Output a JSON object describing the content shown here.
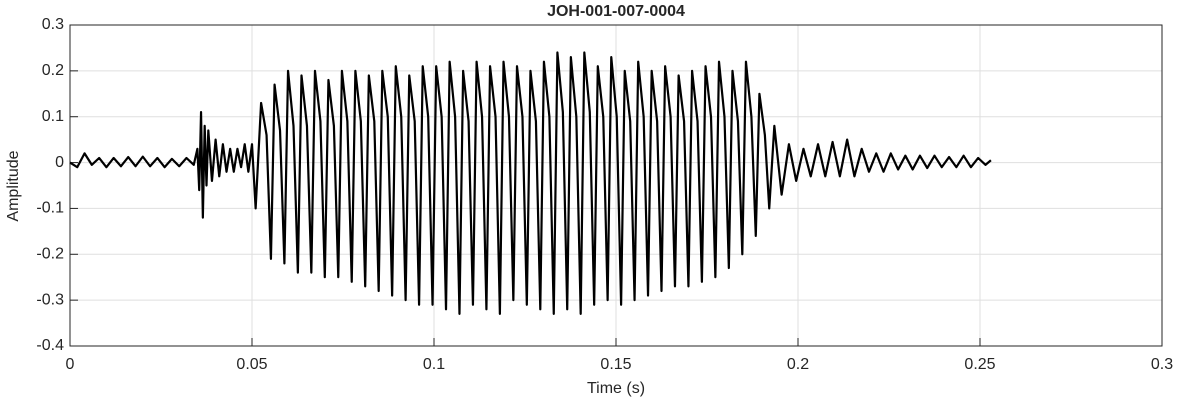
{
  "chart_data": {
    "type": "line",
    "title": "JOH-001-007-0004",
    "x_label": "Time (s)",
    "y_label": "Amplitude",
    "xlim": [
      0,
      0.3
    ],
    "xticks": [
      0,
      0.05,
      0.1,
      0.15,
      0.2,
      0.25,
      0.3
    ],
    "ylim": [
      -0.4,
      0.3
    ],
    "yticks": [
      -0.4,
      -0.3,
      -0.2,
      -0.1,
      0,
      0.1,
      0.2,
      0.3
    ],
    "grid": true,
    "series": [
      {
        "color": "#000000",
        "x": [
          0,
          0.002,
          0.004,
          0.006,
          0.008,
          0.01,
          0.012,
          0.014,
          0.016,
          0.018,
          0.02,
          0.022,
          0.024,
          0.026,
          0.028,
          0.03,
          0.032,
          0.034,
          0.035,
          0.0355,
          0.036,
          0.0365,
          0.037,
          0.0375,
          0.038,
          0.039,
          0.04,
          0.041,
          0.042,
          0.043,
          0.044,
          0.045,
          0.046,
          0.047,
          0.048,
          0.049,
          0.05,
          0.051,
          0.0525,
          0.054,
          0.0552,
          0.0562,
          0.0577,
          0.0589,
          0.0599,
          0.0614,
          0.0626,
          0.0636,
          0.0651,
          0.0663,
          0.0673,
          0.0688,
          0.07,
          0.071,
          0.0725,
          0.0737,
          0.0747,
          0.0762,
          0.0774,
          0.0784,
          0.0799,
          0.0811,
          0.0821,
          0.0836,
          0.0848,
          0.0858,
          0.0873,
          0.0885,
          0.0895,
          0.091,
          0.0922,
          0.0932,
          0.0947,
          0.0959,
          0.0969,
          0.0984,
          0.0996,
          0.1006,
          0.1021,
          0.1033,
          0.1043,
          0.1058,
          0.107,
          0.108,
          0.1095,
          0.1107,
          0.1117,
          0.1132,
          0.1144,
          0.1154,
          0.1169,
          0.1181,
          0.1191,
          0.1206,
          0.1218,
          0.1228,
          0.1243,
          0.1255,
          0.1265,
          0.128,
          0.1292,
          0.1302,
          0.1317,
          0.1329,
          0.1339,
          0.1354,
          0.1366,
          0.1376,
          0.1391,
          0.1403,
          0.1413,
          0.1428,
          0.144,
          0.145,
          0.1465,
          0.1477,
          0.1487,
          0.1502,
          0.1514,
          0.1524,
          0.1539,
          0.1551,
          0.1561,
          0.1576,
          0.1588,
          0.1598,
          0.1613,
          0.1625,
          0.1635,
          0.165,
          0.1662,
          0.1672,
          0.1687,
          0.1699,
          0.1709,
          0.1724,
          0.1736,
          0.1746,
          0.1761,
          0.1773,
          0.1783,
          0.1798,
          0.181,
          0.182,
          0.1835,
          0.1847,
          0.1857,
          0.1872,
          0.1884,
          0.1894,
          0.1909,
          0.1921,
          0.1935,
          0.1955,
          0.1975,
          0.1995,
          0.2015,
          0.2035,
          0.2055,
          0.2075,
          0.2095,
          0.2115,
          0.2135,
          0.2155,
          0.2175,
          0.2195,
          0.2215,
          0.2235,
          0.2255,
          0.2275,
          0.2295,
          0.2315,
          0.2335,
          0.2355,
          0.2375,
          0.2395,
          0.2415,
          0.2435,
          0.2455,
          0.2475,
          0.2495,
          0.2515,
          0.253
        ],
        "values": [
          0,
          -0.01,
          0.02,
          -0.005,
          0.01,
          -0.01,
          0.01,
          -0.008,
          0.012,
          -0.008,
          0.013,
          -0.008,
          0.01,
          -0.01,
          0.008,
          -0.008,
          0.01,
          -0.005,
          0.03,
          -0.06,
          0.11,
          -0.12,
          0.08,
          -0.05,
          0.07,
          -0.04,
          0.05,
          -0.03,
          0.04,
          -0.02,
          0.03,
          -0.02,
          0.03,
          -0.01,
          0.04,
          -0.02,
          0.04,
          -0.1,
          0.13,
          0.06,
          -0.21,
          0.17,
          0.07,
          -0.22,
          0.2,
          0.08,
          -0.24,
          0.19,
          0.08,
          -0.24,
          0.2,
          0.09,
          -0.25,
          0.18,
          0.08,
          -0.25,
          0.2,
          0.09,
          -0.26,
          0.2,
          0.09,
          -0.27,
          0.19,
          0.09,
          -0.28,
          0.2,
          0.1,
          -0.29,
          0.21,
          0.1,
          -0.3,
          0.19,
          0.09,
          -0.31,
          0.21,
          0.1,
          -0.31,
          0.21,
          0.1,
          -0.32,
          0.22,
          0.1,
          -0.33,
          0.2,
          0.09,
          -0.31,
          0.22,
          0.1,
          -0.32,
          0.21,
          0.1,
          -0.33,
          0.22,
          0.1,
          -0.3,
          0.21,
          0.1,
          -0.31,
          0.2,
          0.09,
          -0.32,
          0.22,
          0.1,
          -0.33,
          0.24,
          0.11,
          -0.32,
          0.23,
          0.1,
          -0.33,
          0.24,
          0.11,
          -0.31,
          0.21,
          0.1,
          -0.3,
          0.23,
          0.1,
          -0.31,
          0.2,
          0.09,
          -0.3,
          0.22,
          0.1,
          -0.29,
          0.2,
          0.09,
          -0.28,
          0.21,
          0.1,
          -0.27,
          0.19,
          0.09,
          -0.27,
          0.2,
          0.09,
          -0.26,
          0.21,
          0.1,
          -0.25,
          0.22,
          0.1,
          -0.23,
          0.2,
          0.09,
          -0.2,
          0.22,
          0.1,
          -0.16,
          0.15,
          0.06,
          -0.1,
          0.08,
          -0.07,
          0.04,
          -0.04,
          0.03,
          -0.03,
          0.04,
          -0.03,
          0.045,
          -0.03,
          0.05,
          -0.03,
          0.03,
          -0.02,
          0.02,
          -0.02,
          0.02,
          -0.015,
          0.015,
          -0.015,
          0.015,
          -0.012,
          0.015,
          -0.01,
          0.012,
          -0.01,
          0.015,
          -0.01,
          0.01,
          -0.005,
          0.005
        ]
      }
    ]
  }
}
